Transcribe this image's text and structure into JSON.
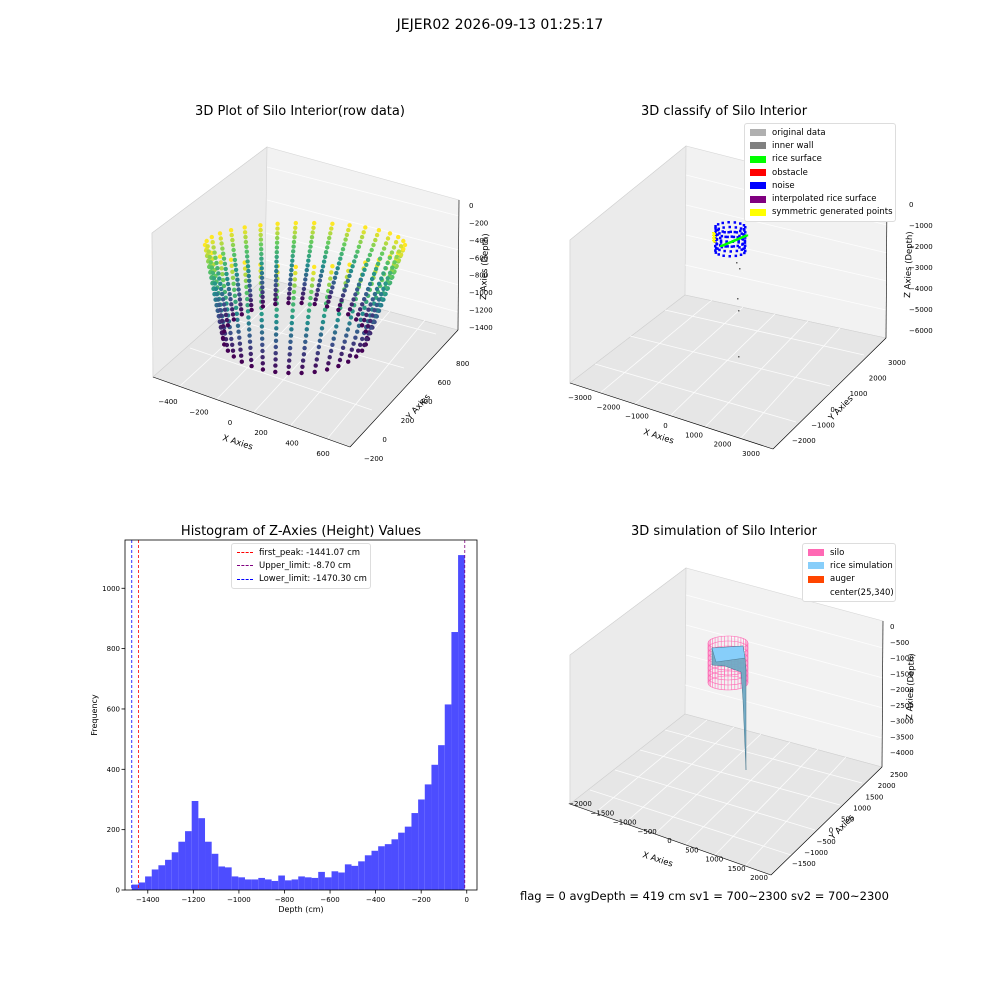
{
  "suptitle": "JEJER02 2026-09-13 01:25:17",
  "status_text": "flag = 0     avgDepth = 419 cm  sv1 = 700~2300  sv2 = 700~2300",
  "chart_data": [
    {
      "type": "scatter",
      "title": "3D Plot of Silo Interior(row data)",
      "xlabel": "X Axies",
      "ylabel": "Y Axies",
      "zlabel": "Z Axies (Depth)",
      "xticks": [
        "−400",
        "−200",
        "0",
        "200",
        "400",
        "600"
      ],
      "yticks": [
        "−200",
        "0",
        "200",
        "400",
        "600",
        "800"
      ],
      "zticks": [
        "0",
        "−200",
        "−400",
        "−600",
        "−800",
        "−1000",
        "−1200",
        "−1400"
      ],
      "xlim": [
        -480,
        650
      ],
      "ylim": [
        -200,
        880
      ],
      "zlim": [
        -1450,
        0
      ],
      "colormap": "viridis"
    },
    {
      "type": "scatter",
      "title": "3D classify of Silo Interior",
      "xlabel": "X Axies",
      "ylabel": "Y Axies",
      "zlabel": "Z Axies (Depth)",
      "xticks": [
        "−3000",
        "−2000",
        "−1000",
        "0",
        "1000",
        "2000",
        "3000"
      ],
      "yticks": [
        "−2000",
        "−1000",
        "0",
        "1000",
        "2000",
        "3000"
      ],
      "zticks": [
        "0",
        "−1000",
        "−2000",
        "−3000",
        "−4000",
        "−5000",
        "−6000"
      ],
      "legend": [
        {
          "label": "original data",
          "color": "#b0b0b0"
        },
        {
          "label": "inner wall",
          "color": "#808080"
        },
        {
          "label": "rice surface",
          "color": "#00ff00"
        },
        {
          "label": "obstacle",
          "color": "#ff0000"
        },
        {
          "label": "noise",
          "color": "#0000ff"
        },
        {
          "label": "interpolated rice surface",
          "color": "#800080"
        },
        {
          "label": "symmetric generated points",
          "color": "#ffff00"
        }
      ]
    },
    {
      "type": "bar",
      "title": "Histogram of Z-Axies (Height) Values",
      "xlabel": "Depth (cm)",
      "ylabel": "Frequency",
      "xlim": [
        -1500,
        45
      ],
      "ylim": [
        0,
        1160
      ],
      "xticks": [
        -1400,
        -1200,
        -1000,
        -800,
        -600,
        -400,
        -200,
        0
      ],
      "yticks": [
        0,
        200,
        400,
        600,
        800,
        1000
      ],
      "bar_color": "#4d4dff",
      "bin_start": -1470.3,
      "bin_width": 29.23,
      "values": [
        18,
        25,
        45,
        68,
        82,
        100,
        125,
        160,
        195,
        295,
        238,
        160,
        120,
        78,
        75,
        45,
        42,
        35,
        35,
        40,
        35,
        30,
        48,
        32,
        35,
        45,
        42,
        40,
        60,
        42,
        62,
        58,
        85,
        80,
        95,
        115,
        130,
        145,
        152,
        168,
        190,
        210,
        255,
        300,
        350,
        415,
        480,
        615,
        855,
        1110
      ],
      "lines": [
        {
          "label": "first_peak: -1441.07 cm",
          "x": -1441.07,
          "color": "#ff0000"
        },
        {
          "label": "Upper_limit: -8.70 cm",
          "x": -8.7,
          "color": "#800080"
        },
        {
          "label": "Lower_limit: -1470.30 cm",
          "x": -1470.3,
          "color": "#0000ff"
        }
      ]
    },
    {
      "type": "area",
      "title": "3D simulation of Silo Interior",
      "xlabel": "X Axies",
      "ylabel": "Y Axies",
      "zlabel": "Z Axies (Depth)",
      "xticks": [
        "−2000",
        "−1500",
        "−1000",
        "−500",
        "0",
        "500",
        "1000",
        "1500",
        "2000"
      ],
      "yticks": [
        "−1500",
        "−1000",
        "−500",
        "0",
        "500",
        "1000",
        "1500",
        "2000",
        "2500"
      ],
      "zticks": [
        "0",
        "−500",
        "−1000",
        "−1500",
        "−2000",
        "−2500",
        "−3000",
        "−3500",
        "−4000"
      ],
      "legend": [
        {
          "label": "silo",
          "color": "#ff69b4"
        },
        {
          "label": "rice simulation",
          "color": "#87cefa"
        },
        {
          "label": "auger",
          "color": "#ff4500"
        },
        {
          "label": "center(25,340)",
          "color": "none"
        }
      ]
    }
  ]
}
